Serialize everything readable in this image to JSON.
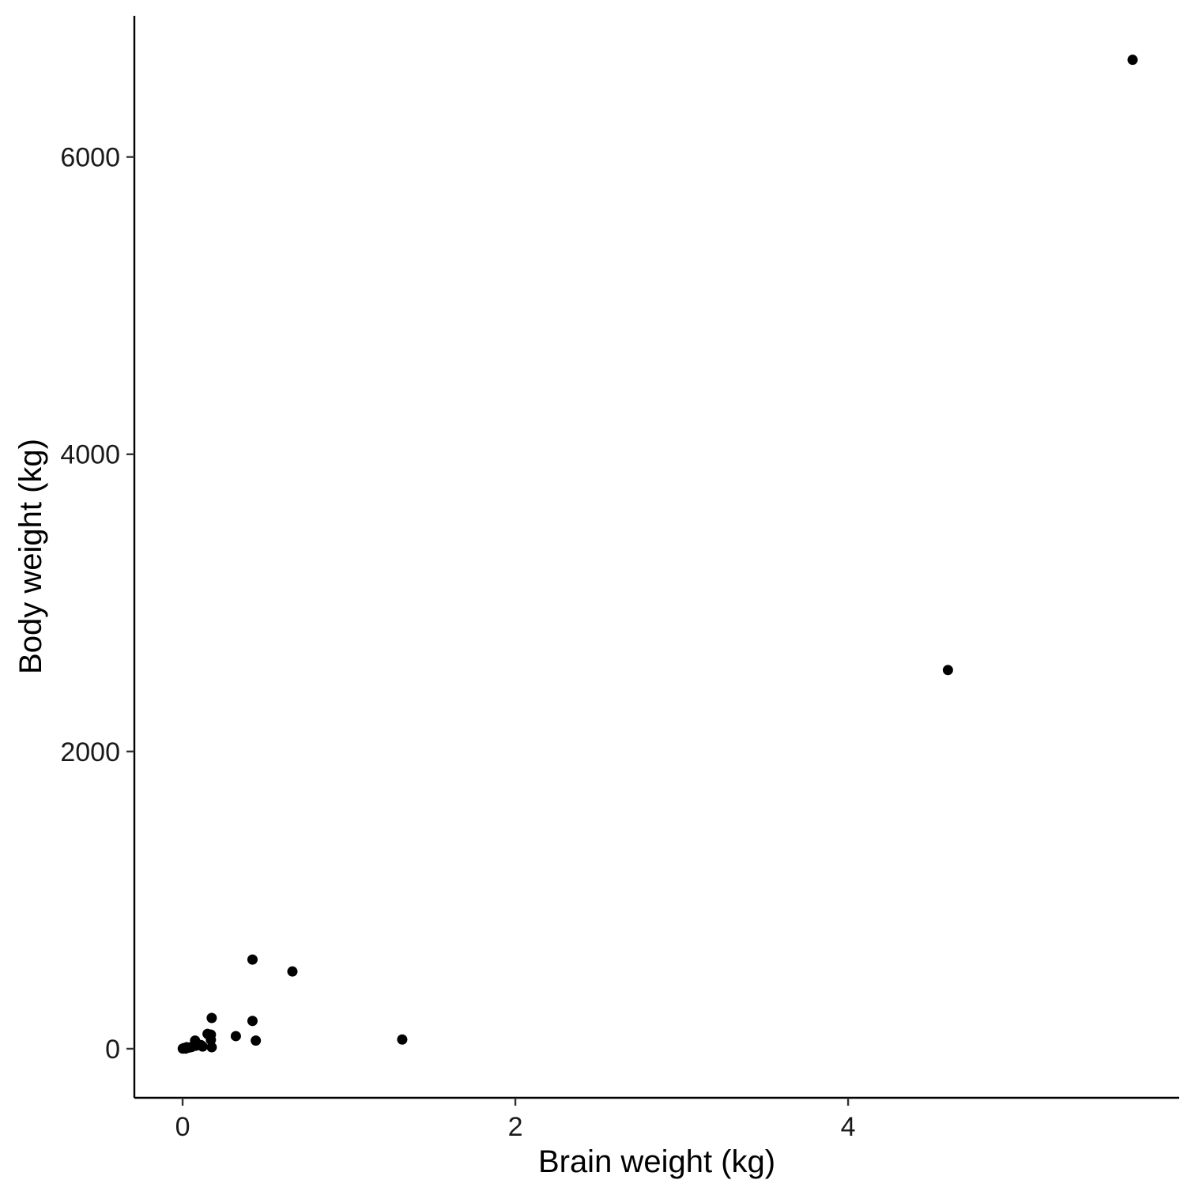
{
  "chart_data": {
    "type": "scatter",
    "title": "",
    "xlabel": "Brain weight (kg)",
    "ylabel": "Body weight (kg)",
    "xlim": [
      -0.29,
      5.99
    ],
    "ylim": [
      -330,
      6950
    ],
    "xticks": [
      0,
      2,
      4
    ],
    "yticks": [
      0,
      2000,
      4000,
      6000
    ],
    "xtick_labels": [
      "0",
      "2",
      "4"
    ],
    "ytick_labels": [
      "0",
      "2000",
      "4000",
      "6000"
    ],
    "grid": false,
    "point_color": "#000000",
    "series": [
      {
        "x": [
          0.001,
          0.003,
          0.006,
          0.01,
          0.018,
          0.025,
          0.04,
          0.055,
          0.075,
          0.08,
          0.11,
          0.12,
          0.15,
          0.17,
          0.17,
          0.175,
          0.175,
          0.32,
          0.42,
          0.42,
          0.44,
          0.66,
          1.32,
          4.6,
          5.71
        ],
        "y": [
          1,
          2,
          3,
          5,
          1,
          10,
          8,
          12,
          55,
          20,
          25,
          15,
          100,
          95,
          60,
          10,
          207,
          85,
          187,
          600,
          55,
          520,
          62,
          2548,
          6654
        ]
      }
    ]
  }
}
